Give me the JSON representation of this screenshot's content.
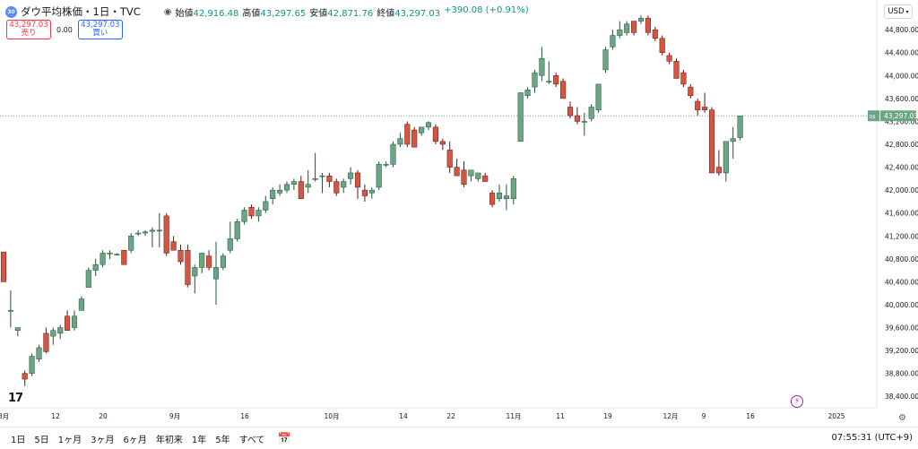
{
  "header": {
    "symbol_icon": "dow-icon",
    "title": "ダウ平均株価・1日・TVC",
    "ohlc": [
      {
        "label": "始値",
        "value": "42,916.48"
      },
      {
        "label": "高値",
        "value": "43,297.65"
      },
      {
        "label": "安値",
        "value": "42,871.76"
      },
      {
        "label": "終値",
        "value": "43,297.03"
      }
    ],
    "change": "+390.08 (+0.91%)"
  },
  "trade": {
    "sell_price": "43,297.03",
    "sell_label": "売り",
    "spread": "0.00",
    "buy_price": "43,297.03",
    "buy_label": "買い"
  },
  "currency": "USD",
  "colors": {
    "up": "#6ba583",
    "down": "#d75442",
    "up_border": "#225437",
    "down_border": "#5b1a13",
    "price_label": "#6ba583"
  },
  "price_axis": {
    "ticks": [
      "44,800.00",
      "44,400.00",
      "44,000.00",
      "43,600.00",
      "43,200.00",
      "42,800.00",
      "42,400.00",
      "42,000.00",
      "41,600.00",
      "41,200.00",
      "40,800.00",
      "40,400.00",
      "40,000.00",
      "39,600.00",
      "39,200.00",
      "38,800.00",
      "38,400.00"
    ],
    "last_label": "43,297.03",
    "last_prefix": "DJI"
  },
  "time_axis": {
    "labels": [
      "8月",
      "12",
      "20",
      "9月",
      "16",
      "10月",
      "14",
      "22",
      "11月",
      "11",
      "19",
      "12月",
      "9",
      "16",
      "2025"
    ]
  },
  "chart_data": {
    "type": "candlestick",
    "ylim": [
      38200,
      45100
    ],
    "x_labels": [
      "8月",
      "12",
      "20",
      "9月",
      "16",
      "10月",
      "14",
      "22",
      "11月",
      "11",
      "19",
      "12月",
      "9",
      "16",
      "2025"
    ],
    "candles": [
      {
        "o": 40920,
        "h": 40920,
        "l": 40400,
        "c": 40400
      },
      {
        "o": 39900,
        "h": 40250,
        "l": 39600,
        "c": 39900
      },
      {
        "o": 39550,
        "h": 39600,
        "l": 39450,
        "c": 39600
      },
      {
        "o": 38800,
        "h": 38850,
        "l": 38580,
        "c": 38700
      },
      {
        "o": 38800,
        "h": 39150,
        "l": 38750,
        "c": 39100
      },
      {
        "o": 39050,
        "h": 39300,
        "l": 39000,
        "c": 39250
      },
      {
        "o": 39500,
        "h": 39600,
        "l": 39150,
        "c": 39180
      },
      {
        "o": 39450,
        "h": 39600,
        "l": 39300,
        "c": 39550
      },
      {
        "o": 39500,
        "h": 39650,
        "l": 39400,
        "c": 39600
      },
      {
        "o": 39800,
        "h": 39900,
        "l": 39550,
        "c": 39550
      },
      {
        "o": 39600,
        "h": 39900,
        "l": 39550,
        "c": 39800
      },
      {
        "o": 39900,
        "h": 40150,
        "l": 39900,
        "c": 40100
      },
      {
        "o": 40300,
        "h": 40650,
        "l": 40300,
        "c": 40600
      },
      {
        "o": 40600,
        "h": 40800,
        "l": 40500,
        "c": 40700
      },
      {
        "o": 40700,
        "h": 40950,
        "l": 40650,
        "c": 40900
      },
      {
        "o": 40900,
        "h": 40950,
        "l": 40800,
        "c": 40900
      },
      {
        "o": 40880,
        "h": 40900,
        "l": 40870,
        "c": 40880
      },
      {
        "o": 40950,
        "h": 40950,
        "l": 40700,
        "c": 40700
      },
      {
        "o": 40950,
        "h": 41250,
        "l": 40900,
        "c": 41200
      },
      {
        "o": 41250,
        "h": 41300,
        "l": 41200,
        "c": 41250
      },
      {
        "o": 41250,
        "h": 41300,
        "l": 41200,
        "c": 41270
      },
      {
        "o": 41280,
        "h": 41350,
        "l": 41000,
        "c": 41300
      },
      {
        "o": 41300,
        "h": 41600,
        "l": 41000,
        "c": 41300
      },
      {
        "o": 41550,
        "h": 41600,
        "l": 40850,
        "c": 40900
      },
      {
        "o": 41100,
        "h": 41200,
        "l": 40950,
        "c": 40950
      },
      {
        "o": 40950,
        "h": 41050,
        "l": 40700,
        "c": 40750
      },
      {
        "o": 40950,
        "h": 41050,
        "l": 40300,
        "c": 40350
      },
      {
        "o": 40500,
        "h": 40700,
        "l": 40200,
        "c": 40650
      },
      {
        "o": 40650,
        "h": 40900,
        "l": 40550,
        "c": 40900
      },
      {
        "o": 40850,
        "h": 40950,
        "l": 40600,
        "c": 40650
      },
      {
        "o": 40450,
        "h": 41100,
        "l": 40000,
        "c": 40650
      },
      {
        "o": 40650,
        "h": 40900,
        "l": 40600,
        "c": 40850
      },
      {
        "o": 40950,
        "h": 41450,
        "l": 40900,
        "c": 41150
      },
      {
        "o": 41150,
        "h": 41500,
        "l": 41100,
        "c": 41450
      },
      {
        "o": 41450,
        "h": 41700,
        "l": 41400,
        "c": 41650
      },
      {
        "o": 41700,
        "h": 41750,
        "l": 41500,
        "c": 41550
      },
      {
        "o": 41550,
        "h": 41700,
        "l": 41450,
        "c": 41650
      },
      {
        "o": 41650,
        "h": 41900,
        "l": 41600,
        "c": 41800
      },
      {
        "o": 41850,
        "h": 42050,
        "l": 41750,
        "c": 42000
      },
      {
        "o": 41950,
        "h": 42100,
        "l": 41900,
        "c": 42000
      },
      {
        "o": 42000,
        "h": 42150,
        "l": 41950,
        "c": 42100
      },
      {
        "o": 42100,
        "h": 42200,
        "l": 42000,
        "c": 42150
      },
      {
        "o": 42150,
        "h": 42250,
        "l": 41850,
        "c": 41850
      },
      {
        "o": 42050,
        "h": 42350,
        "l": 41950,
        "c": 42100
      },
      {
        "o": 42200,
        "h": 42650,
        "l": 42150,
        "c": 42200
      },
      {
        "o": 42250,
        "h": 42300,
        "l": 41950,
        "c": 42250
      },
      {
        "o": 42250,
        "h": 42300,
        "l": 42050,
        "c": 42150
      },
      {
        "o": 42150,
        "h": 42200,
        "l": 41900,
        "c": 41950
      },
      {
        "o": 42050,
        "h": 42200,
        "l": 41950,
        "c": 42150
      },
      {
        "o": 42200,
        "h": 42400,
        "l": 42100,
        "c": 42300
      },
      {
        "o": 42300,
        "h": 42350,
        "l": 41850,
        "c": 42050
      },
      {
        "o": 42000,
        "h": 42100,
        "l": 41800,
        "c": 41900
      },
      {
        "o": 41950,
        "h": 42050,
        "l": 41850,
        "c": 42000
      },
      {
        "o": 42050,
        "h": 42500,
        "l": 42000,
        "c": 42450
      },
      {
        "o": 42450,
        "h": 42500,
        "l": 42400,
        "c": 42450
      },
      {
        "o": 42450,
        "h": 42850,
        "l": 42400,
        "c": 42800
      },
      {
        "o": 42800,
        "h": 43000,
        "l": 42750,
        "c": 42900
      },
      {
        "o": 43150,
        "h": 43200,
        "l": 42750,
        "c": 42800
      },
      {
        "o": 43050,
        "h": 43100,
        "l": 42750,
        "c": 42750
      },
      {
        "o": 43000,
        "h": 43100,
        "l": 42950,
        "c": 43100
      },
      {
        "o": 43100,
        "h": 43200,
        "l": 43050,
        "c": 43180
      },
      {
        "o": 43100,
        "h": 43150,
        "l": 42800,
        "c": 42850
      },
      {
        "o": 42850,
        "h": 42900,
        "l": 42700,
        "c": 42800
      },
      {
        "o": 42700,
        "h": 42850,
        "l": 42300,
        "c": 42400
      },
      {
        "o": 42400,
        "h": 42550,
        "l": 42250,
        "c": 42250
      },
      {
        "o": 42350,
        "h": 42500,
        "l": 42050,
        "c": 42100
      },
      {
        "o": 42250,
        "h": 42350,
        "l": 42150,
        "c": 42350
      },
      {
        "o": 42200,
        "h": 42300,
        "l": 42150,
        "c": 42300
      },
      {
        "o": 42250,
        "h": 42300,
        "l": 42150,
        "c": 42150
      },
      {
        "o": 41950,
        "h": 42000,
        "l": 41700,
        "c": 41750
      },
      {
        "o": 41850,
        "h": 42100,
        "l": 41800,
        "c": 41950
      },
      {
        "o": 41850,
        "h": 42100,
        "l": 41650,
        "c": 41900
      },
      {
        "o": 41850,
        "h": 42250,
        "l": 41750,
        "c": 42200
      },
      {
        "o": 42850,
        "h": 43700,
        "l": 42850,
        "c": 43700
      },
      {
        "o": 43650,
        "h": 43800,
        "l": 43600,
        "c": 43750
      },
      {
        "o": 43800,
        "h": 44100,
        "l": 43700,
        "c": 44050
      },
      {
        "o": 44000,
        "h": 44500,
        "l": 43900,
        "c": 44300
      },
      {
        "o": 43900,
        "h": 44250,
        "l": 43850,
        "c": 43900
      },
      {
        "o": 44000,
        "h": 44050,
        "l": 43800,
        "c": 43850
      },
      {
        "o": 43900,
        "h": 43950,
        "l": 43600,
        "c": 43600
      },
      {
        "o": 43450,
        "h": 43550,
        "l": 43250,
        "c": 43300
      },
      {
        "o": 43300,
        "h": 43450,
        "l": 43150,
        "c": 43200
      },
      {
        "o": 43200,
        "h": 43350,
        "l": 42950,
        "c": 43200
      },
      {
        "o": 43250,
        "h": 43500,
        "l": 43200,
        "c": 43450
      },
      {
        "o": 43400,
        "h": 43850,
        "l": 43350,
        "c": 43850
      },
      {
        "o": 44100,
        "h": 44500,
        "l": 44050,
        "c": 44450
      },
      {
        "o": 44500,
        "h": 44800,
        "l": 44450,
        "c": 44700
      },
      {
        "o": 44700,
        "h": 44950,
        "l": 44650,
        "c": 44800
      },
      {
        "o": 44750,
        "h": 44950,
        "l": 44700,
        "c": 44900
      },
      {
        "o": 44950,
        "h": 44950,
        "l": 44700,
        "c": 44750
      },
      {
        "o": 44950,
        "h": 45050,
        "l": 44900,
        "c": 45000
      },
      {
        "o": 45000,
        "h": 45050,
        "l": 44700,
        "c": 44750
      },
      {
        "o": 44800,
        "h": 44850,
        "l": 44600,
        "c": 44650
      },
      {
        "o": 44650,
        "h": 44700,
        "l": 44350,
        "c": 44400
      },
      {
        "o": 44350,
        "h": 44400,
        "l": 44200,
        "c": 44250
      },
      {
        "o": 44250,
        "h": 44300,
        "l": 43950,
        "c": 43950
      },
      {
        "o": 44050,
        "h": 44100,
        "l": 43800,
        "c": 43850
      },
      {
        "o": 43800,
        "h": 43850,
        "l": 43600,
        "c": 43650
      },
      {
        "o": 43550,
        "h": 43600,
        "l": 43300,
        "c": 43400
      },
      {
        "o": 43450,
        "h": 43700,
        "l": 43350,
        "c": 43400
      },
      {
        "o": 43400,
        "h": 43450,
        "l": 42300,
        "c": 42300
      },
      {
        "o": 42400,
        "h": 42700,
        "l": 42250,
        "c": 42300
      },
      {
        "o": 42300,
        "h": 42850,
        "l": 42150,
        "c": 42850
      },
      {
        "o": 42850,
        "h": 43100,
        "l": 42550,
        "c": 42900
      },
      {
        "o": 42916.48,
        "h": 43297.65,
        "l": 42871.76,
        "c": 43297.03
      }
    ]
  },
  "bottom": {
    "ranges": [
      "1日",
      "5日",
      "1ヶ月",
      "3ヶ月",
      "6ヶ月",
      "年初来",
      "1年",
      "5年",
      "すべて"
    ],
    "clock": "07:55:31 (UTC+9)"
  },
  "logo": "17"
}
